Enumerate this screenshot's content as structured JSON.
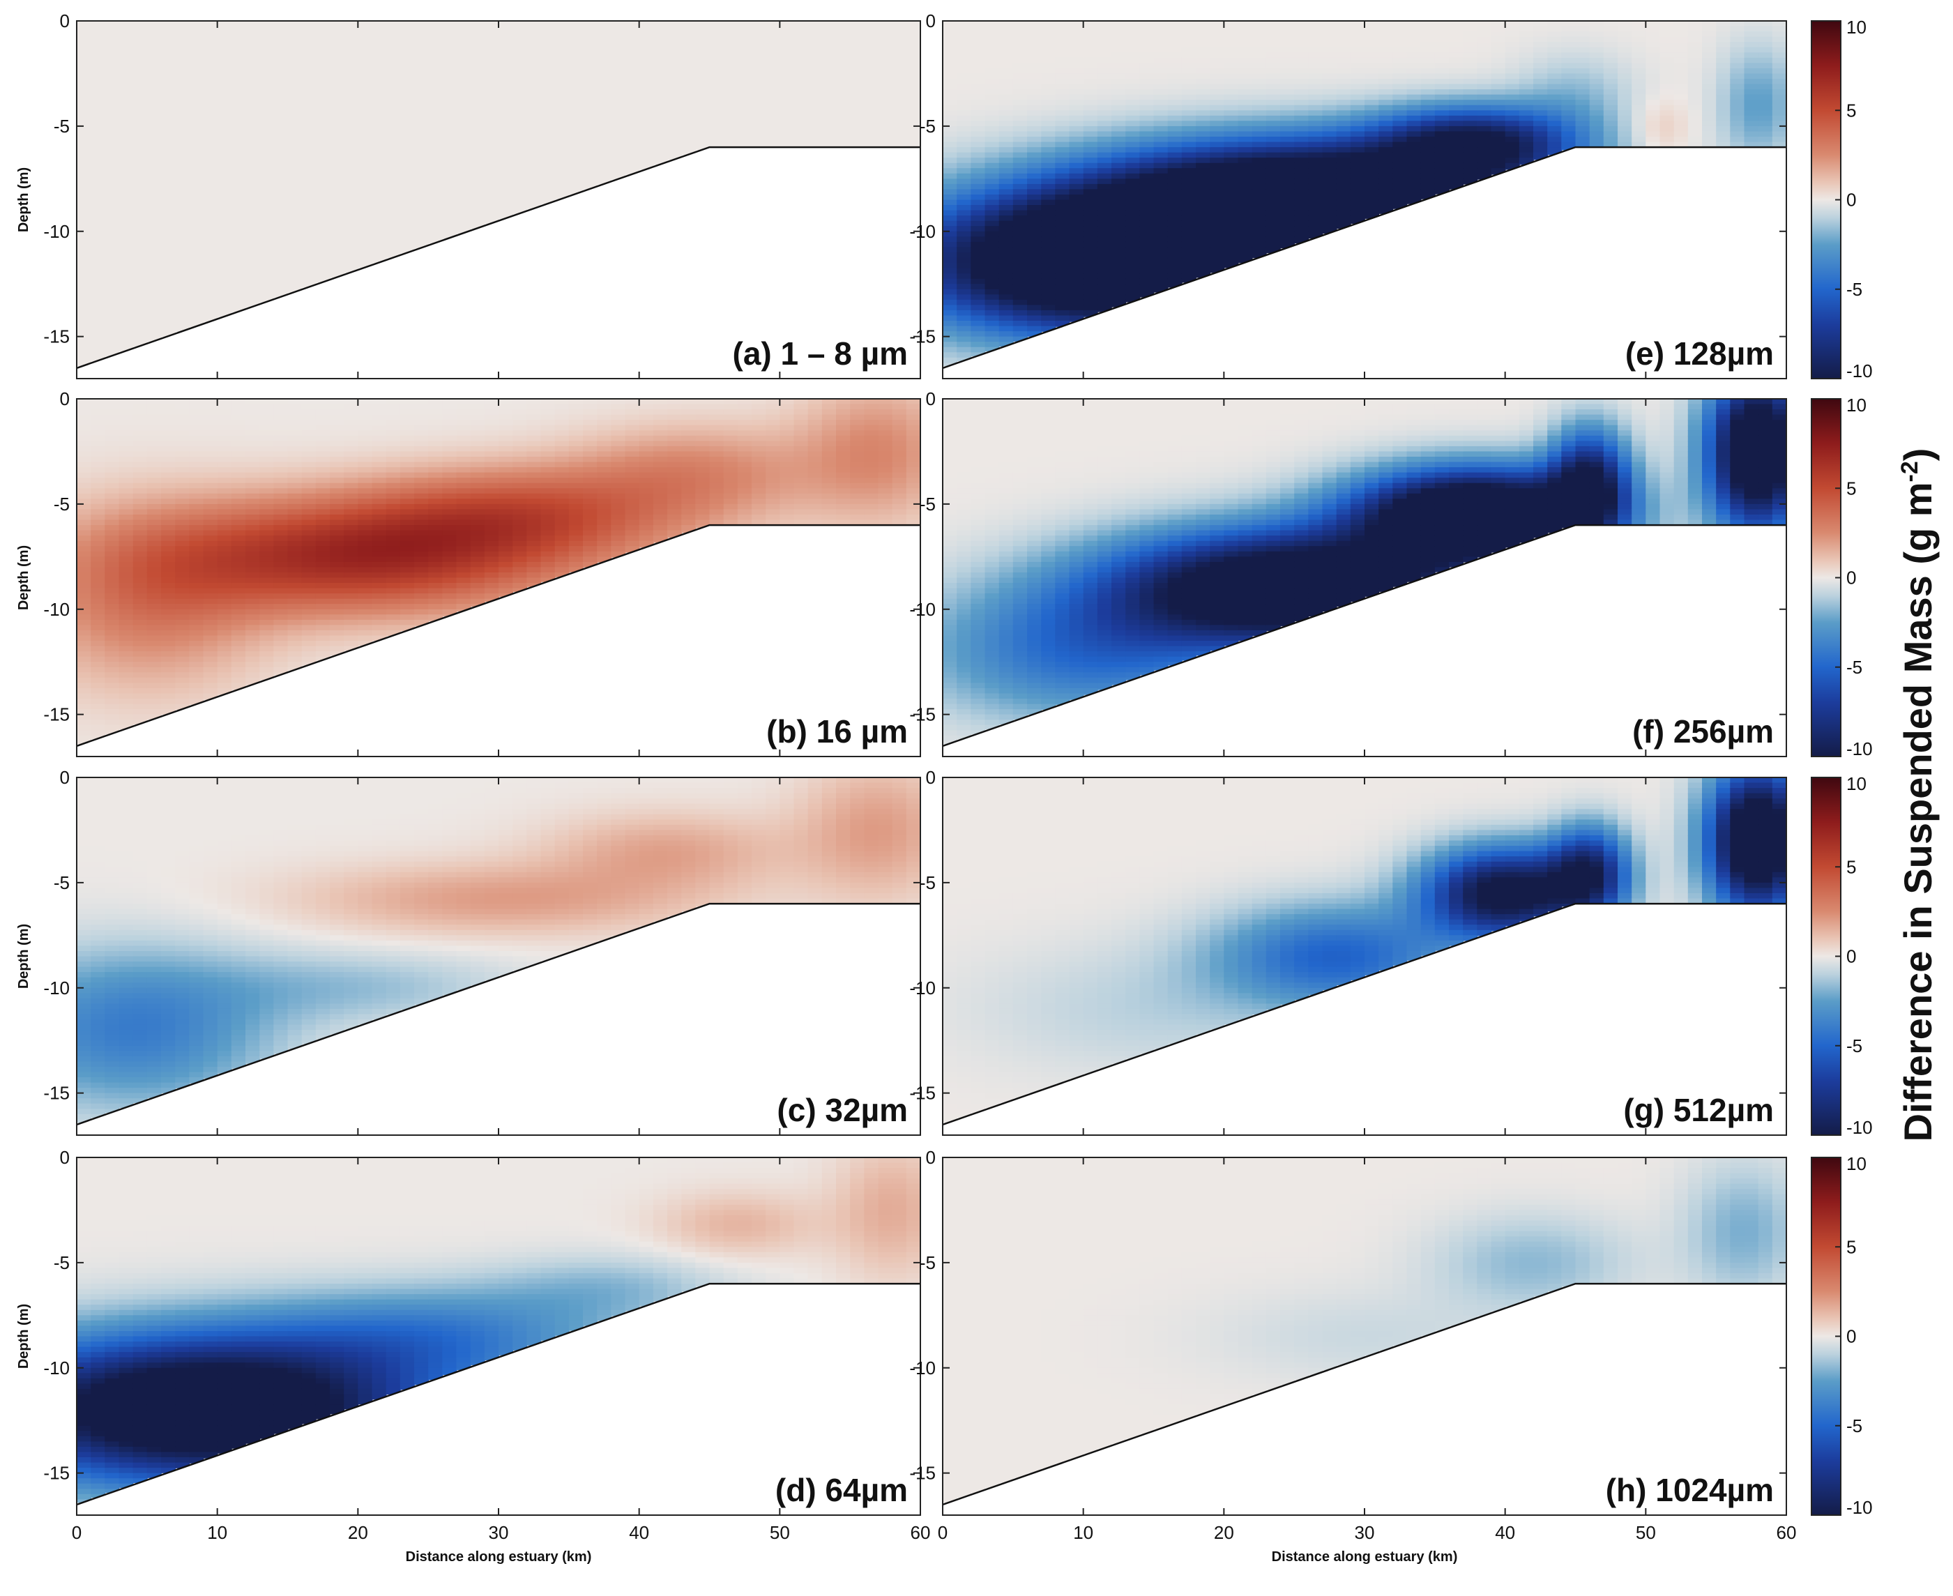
{
  "chart_data": {
    "type": "heatmap",
    "figure_title": "",
    "colorbar_label": "Difference in Suspended Mass (g m",
    "colorbar_label_superscript": "-2",
    "colorbar_label_close": ")",
    "colorbar_range": [
      -10,
      10
    ],
    "colorbar_ticks": [
      -10,
      -5,
      0,
      5,
      10
    ],
    "colormap": {
      "stops": [
        {
          "value": -10,
          "color": "#141c48"
        },
        {
          "value": -7,
          "color": "#1c3c9c"
        },
        {
          "value": -5,
          "color": "#2266cc"
        },
        {
          "value": -2.5,
          "color": "#5b9dc8"
        },
        {
          "value": -1,
          "color": "#bcd2de"
        },
        {
          "value": 0,
          "color": "#ede8e5"
        },
        {
          "value": 1,
          "color": "#e9c4b4"
        },
        {
          "value": 2.5,
          "color": "#d98a70"
        },
        {
          "value": 5,
          "color": "#c24a32"
        },
        {
          "value": 7.5,
          "color": "#8e1c1c"
        },
        {
          "value": 10,
          "color": "#3f0810"
        }
      ]
    },
    "xlabel": "Distance along estuary (km)",
    "ylabel": "Depth (m)",
    "xlim": [
      0,
      60
    ],
    "ylim": [
      -17,
      0
    ],
    "xticks": [
      0,
      10,
      20,
      30,
      40,
      50,
      60
    ],
    "yticks": [
      0,
      -5,
      -10,
      -15
    ],
    "bathymetry": {
      "x": [
        0,
        45,
        60
      ],
      "depth": [
        -16.5,
        -6,
        -6
      ]
    },
    "panels": [
      {
        "id": "a",
        "label": "(a) 1 – 8 µm",
        "blobs": []
      },
      {
        "id": "b",
        "label": "(b) 16 µm",
        "blobs": [
          {
            "x": 5,
            "y": -9.5,
            "value": 3,
            "sx": 6,
            "sy": 3
          },
          {
            "x": 20,
            "y": -7.5,
            "value": 6.5,
            "sx": 10,
            "sy": 1.9
          },
          {
            "x": 32,
            "y": -5.5,
            "value": 4,
            "sx": 8,
            "sy": 1.6
          },
          {
            "x": 44,
            "y": -3.5,
            "value": 2.5,
            "sx": 6,
            "sy": 1.6
          },
          {
            "x": 57,
            "y": -2.5,
            "value": 2.5,
            "sx": 4,
            "sy": 2.4
          }
        ]
      },
      {
        "id": "c",
        "label": "(c) 32µm",
        "blobs": [
          {
            "x": 4,
            "y": -12,
            "value": -4,
            "sx": 7,
            "sy": 2.6
          },
          {
            "x": 20,
            "y": -10,
            "value": -1.5,
            "sx": 8,
            "sy": 1.2
          },
          {
            "x": 30,
            "y": -5.8,
            "value": 2,
            "sx": 10,
            "sy": 1.2
          },
          {
            "x": 42,
            "y": -3.5,
            "value": 1.8,
            "sx": 6,
            "sy": 1.3
          },
          {
            "x": 57,
            "y": -2.5,
            "value": 2,
            "sx": 4,
            "sy": 2.3
          }
        ]
      },
      {
        "id": "d",
        "label": "(d) 64µm",
        "blobs": [
          {
            "x": 9,
            "y": -12,
            "value": -14,
            "sx": 11,
            "sy": 2.4
          },
          {
            "x": 26,
            "y": -8.5,
            "value": -3.5,
            "sx": 9,
            "sy": 1.6
          },
          {
            "x": 38,
            "y": -6.2,
            "value": -1.5,
            "sx": 6,
            "sy": 1.1
          },
          {
            "x": 47,
            "y": -3.2,
            "value": 1.4,
            "sx": 4,
            "sy": 1.1
          },
          {
            "x": 58,
            "y": -2.5,
            "value": 1.6,
            "sx": 3,
            "sy": 2.3
          }
        ]
      },
      {
        "id": "e",
        "label": "(e) 128µm",
        "blobs": [
          {
            "x": 11,
            "y": -11.5,
            "value": -16,
            "sx": 9,
            "sy": 2.3
          },
          {
            "x": 26,
            "y": -8.5,
            "value": -16,
            "sx": 10,
            "sy": 1.9
          },
          {
            "x": 38,
            "y": -5.8,
            "value": -9,
            "sx": 5,
            "sy": 1.2
          },
          {
            "x": 45,
            "y": -3.5,
            "value": -1.5,
            "sx": 3,
            "sy": 1.4
          },
          {
            "x": 51,
            "y": -5.2,
            "value": 1,
            "sx": 1.5,
            "sy": 1
          },
          {
            "x": 58,
            "y": -4,
            "value": -2.5,
            "sx": 2,
            "sy": 2
          }
        ]
      },
      {
        "id": "f",
        "label": "(f) 256µm",
        "blobs": [
          {
            "x": 10,
            "y": -12,
            "value": -4.5,
            "sx": 8,
            "sy": 2.3
          },
          {
            "x": 25,
            "y": -9,
            "value": -14,
            "sx": 9,
            "sy": 1.9
          },
          {
            "x": 38,
            "y": -5.5,
            "value": -15,
            "sx": 6,
            "sy": 1.5
          },
          {
            "x": 46,
            "y": -4,
            "value": -9,
            "sx": 2,
            "sy": 1.8
          },
          {
            "x": 58,
            "y": -2.5,
            "value": -14,
            "sx": 2.5,
            "sy": 2.6
          }
        ]
      },
      {
        "id": "g",
        "label": "(g) 512µm",
        "blobs": [
          {
            "x": 15,
            "y": -11,
            "value": -1,
            "sx": 9,
            "sy": 2.2
          },
          {
            "x": 28,
            "y": -8.5,
            "value": -5,
            "sx": 6,
            "sy": 1.7
          },
          {
            "x": 40,
            "y": -5.5,
            "value": -11,
            "sx": 4,
            "sy": 1.5
          },
          {
            "x": 46,
            "y": -4.5,
            "value": -8,
            "sx": 2,
            "sy": 1.5
          },
          {
            "x": 58,
            "y": -3,
            "value": -14,
            "sx": 2.5,
            "sy": 2.4
          }
        ]
      },
      {
        "id": "h",
        "label": "(h) 1024µm",
        "blobs": [
          {
            "x": 30,
            "y": -8.5,
            "value": -0.7,
            "sx": 8,
            "sy": 1.6
          },
          {
            "x": 42,
            "y": -5,
            "value": -1.7,
            "sx": 5,
            "sy": 1.6
          },
          {
            "x": 57,
            "y": -3.5,
            "value": -2,
            "sx": 3,
            "sy": 2.3
          }
        ]
      }
    ]
  }
}
